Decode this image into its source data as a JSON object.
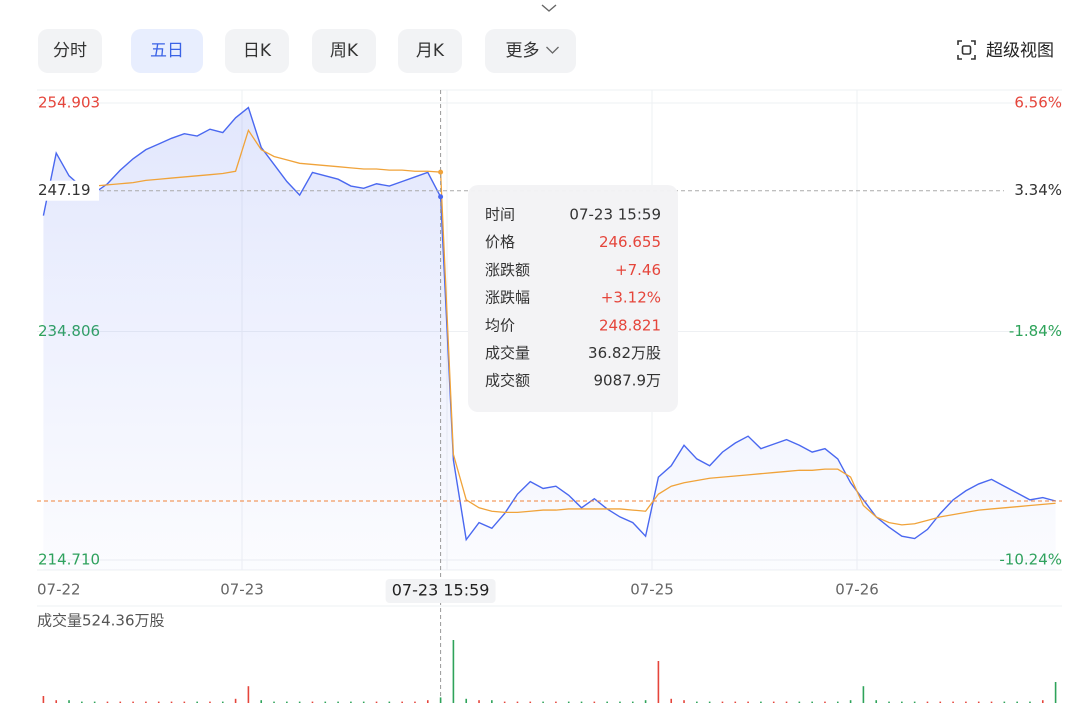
{
  "tabs": [
    "分时",
    "五日",
    "日K",
    "周K",
    "月K",
    "更多"
  ],
  "active_tab": 1,
  "super_view": "超级视图",
  "chart_data": {
    "type": "line",
    "categories": [
      "07-22",
      null,
      null,
      null,
      null,
      null,
      null,
      null,
      null,
      null,
      null,
      null,
      null,
      null,
      null,
      null,
      "07-23",
      null,
      null,
      null,
      null,
      null,
      null,
      null,
      null,
      null,
      null,
      null,
      null,
      null,
      null,
      null,
      null,
      null,
      null,
      null,
      null,
      null,
      null,
      null,
      null,
      null,
      null,
      null,
      null,
      null,
      null,
      null,
      "07-25",
      null,
      null,
      null,
      null,
      null,
      null,
      null,
      null,
      null,
      null,
      null,
      null,
      null,
      null,
      null,
      "07-26",
      null,
      null,
      null,
      null,
      null,
      null,
      null,
      null,
      null,
      null,
      null,
      null,
      null,
      null,
      null
    ],
    "series": [
      {
        "name": "价格",
        "color": "#4a68f0",
        "values": [
          245.0,
          250.5,
          248.5,
          247.5,
          247.0,
          247.8,
          249.0,
          250.0,
          250.8,
          251.3,
          251.8,
          252.2,
          252.0,
          252.6,
          252.3,
          253.6,
          254.5,
          251.0,
          249.5,
          248.0,
          246.8,
          248.8,
          248.5,
          248.2,
          247.6,
          247.4,
          247.8,
          247.6,
          248.0,
          248.4,
          248.8,
          246.655,
          223.5,
          216.5,
          218.0,
          217.5,
          218.8,
          220.5,
          221.6,
          221.0,
          221.2,
          220.4,
          219.3,
          220.1,
          219.2,
          218.5,
          218.0,
          216.8,
          222.0,
          223.0,
          224.8,
          223.6,
          223.0,
          224.2,
          225.0,
          225.6,
          224.5,
          224.9,
          225.3,
          224.8,
          224.2,
          224.5,
          223.6,
          221.5,
          220.0,
          218.5,
          217.6,
          216.8,
          216.6,
          217.4,
          218.8,
          220.0,
          220.8,
          221.4,
          221.8,
          221.2,
          220.6,
          220.0,
          220.2,
          219.9
        ]
      },
      {
        "name": "均价",
        "color": "#f0a33a",
        "values": [
          247.0,
          247.3,
          247.4,
          247.5,
          247.6,
          247.7,
          247.8,
          247.9,
          248.1,
          248.2,
          248.3,
          248.4,
          248.5,
          248.6,
          248.7,
          248.9,
          252.5,
          250.8,
          250.2,
          249.9,
          249.6,
          249.5,
          249.4,
          249.3,
          249.2,
          249.1,
          249.1,
          249.0,
          249.0,
          248.9,
          248.9,
          248.821,
          224.0,
          220.0,
          219.3,
          219.0,
          218.9,
          218.9,
          219.0,
          219.1,
          219.1,
          219.2,
          219.2,
          219.2,
          219.2,
          219.2,
          219.1,
          219.0,
          220.5,
          221.2,
          221.5,
          221.7,
          221.9,
          222.0,
          222.1,
          222.2,
          222.3,
          222.4,
          222.5,
          222.6,
          222.6,
          222.7,
          222.7,
          222.0,
          219.5,
          218.5,
          218.0,
          217.8,
          217.9,
          218.2,
          218.5,
          218.7,
          218.9,
          219.1,
          219.2,
          219.3,
          219.4,
          219.5,
          219.6,
          219.7
        ]
      }
    ],
    "ylim": [
      214.71,
      254.903
    ],
    "yticks": [
      254.903,
      234.806,
      {
        "value": 214.71,
        "label": "214.710"
      }
    ],
    "y2lim": [
      -10.24,
      6.56
    ],
    "y2ticks": [
      {
        "value": 6.56,
        "label": "6.56%"
      },
      {
        "value": -1.84,
        "label": "-1.84%"
      },
      {
        "value": -10.24,
        "label": "-10.24%"
      }
    ],
    "crosshair": {
      "index": 31,
      "value": 247.19,
      "percent": {
        "value": 3.34,
        "label": "3.34%"
      },
      "label": "07-23 15:59"
    },
    "volume": {
      "label": "成交量524.36万股",
      "values": [
        5,
        2,
        2,
        1,
        1,
        1,
        1,
        1,
        1,
        1,
        1,
        1,
        1,
        1,
        1,
        3,
        12,
        2,
        1,
        1,
        1,
        1,
        1,
        1,
        1,
        1,
        1,
        1,
        1,
        1,
        2,
        4,
        45,
        3,
        2,
        2,
        1,
        1,
        1,
        1,
        1,
        1,
        1,
        1,
        1,
        1,
        1,
        2,
        30,
        3,
        2,
        1,
        1,
        1,
        1,
        1,
        1,
        1,
        1,
        1,
        1,
        1,
        1,
        2,
        12,
        2,
        1,
        1,
        1,
        1,
        1,
        1,
        1,
        1,
        1,
        1,
        1,
        1,
        2,
        15
      ]
    },
    "tooltip": [
      [
        "时间",
        "07-23 15:59"
      ],
      [
        "价格",
        "246.655"
      ],
      [
        "涨跌额",
        "+7.46"
      ],
      [
        "涨跌幅",
        "+3.12%"
      ],
      [
        "均价",
        "248.821"
      ],
      [
        "成交量",
        "36.82万股"
      ],
      [
        "成交额",
        "9087.9万"
      ]
    ]
  }
}
